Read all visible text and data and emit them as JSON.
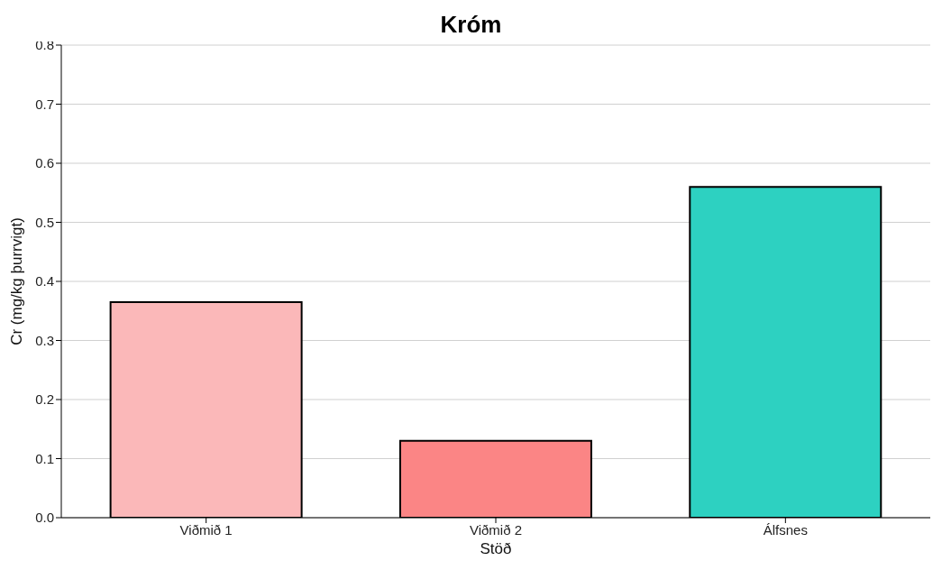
{
  "chart_data": {
    "type": "bar",
    "title": "Króm",
    "xlabel": "Stöð",
    "ylabel": "Cr (mg/kg þurrvigt)",
    "categories": [
      "Viðmið 1",
      "Viðmið 2",
      "Álfsnes"
    ],
    "values": [
      0.365,
      0.13,
      0.56
    ],
    "colors": [
      "#fbb8b9",
      "#fb8585",
      "#2dd1c1"
    ],
    "ylim": [
      0,
      0.8
    ],
    "yticks": [
      {
        "value": 0,
        "label": "0.0"
      },
      0.1,
      0.2,
      0.3,
      0.4,
      0.5,
      0.6,
      0.7,
      0.8
    ],
    "grid": "y"
  }
}
